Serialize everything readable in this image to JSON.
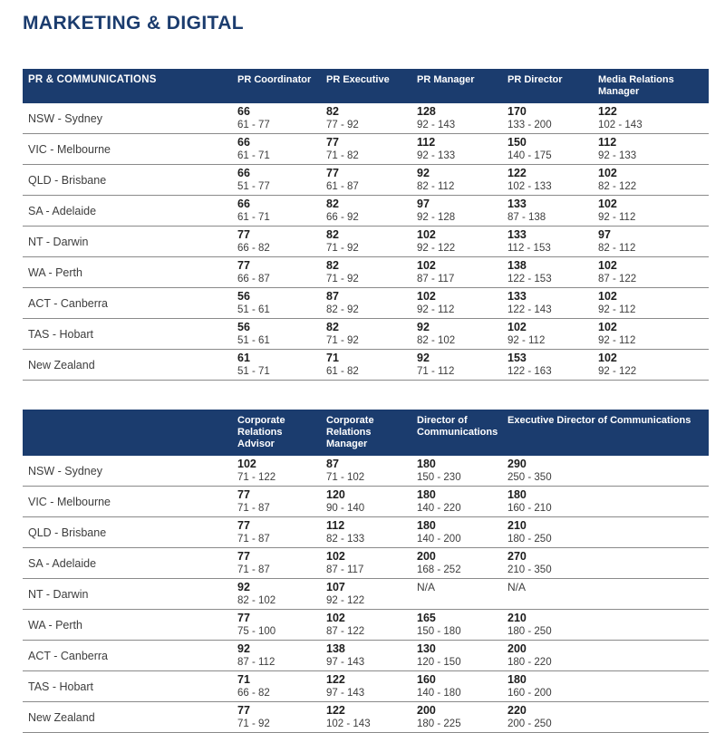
{
  "title": "MARKETING & DIGITAL",
  "colors": {
    "header_bg": "#1B3C6E",
    "title_text": "#1B3C6E",
    "row_line": "#8a8a8a",
    "median_text": "#1d1d1d",
    "secondary_text": "#3d3d3d"
  },
  "tables": [
    {
      "name": "pr-communications-table",
      "label": "PR & COMMUNICATIONS",
      "columns": [
        "PR Coordinator",
        "PR Executive",
        "PR Manager",
        "PR Director",
        "Media Relations Manager"
      ],
      "rows": [
        {
          "region": "NSW - Sydney",
          "cells": [
            [
              "66",
              "61 - 77"
            ],
            [
              "82",
              "77 - 92"
            ],
            [
              "128",
              "92 - 143"
            ],
            [
              "170",
              "133 - 200"
            ],
            [
              "122",
              "102 - 143"
            ]
          ]
        },
        {
          "region": "VIC - Melbourne",
          "cells": [
            [
              "66",
              "61 - 71"
            ],
            [
              "77",
              "71 - 82"
            ],
            [
              "112",
              "92 - 133"
            ],
            [
              "150",
              "140 - 175"
            ],
            [
              "112",
              "92 - 133"
            ]
          ]
        },
        {
          "region": "QLD - Brisbane",
          "cells": [
            [
              "66",
              "51 - 77"
            ],
            [
              "77",
              "61 - 87"
            ],
            [
              "92",
              "82 - 112"
            ],
            [
              "122",
              "102 - 133"
            ],
            [
              "102",
              "82 - 122"
            ]
          ]
        },
        {
          "region": "SA - Adelaide",
          "cells": [
            [
              "66",
              "61 - 71"
            ],
            [
              "82",
              "66 - 92"
            ],
            [
              "97",
              "92 - 128"
            ],
            [
              "133",
              "87 - 138"
            ],
            [
              "102",
              "92 - 112"
            ]
          ]
        },
        {
          "region": "NT - Darwin",
          "cells": [
            [
              "77",
              "66 - 82"
            ],
            [
              "82",
              "71 - 92"
            ],
            [
              "102",
              "92 - 122"
            ],
            [
              "133",
              "112 - 153"
            ],
            [
              "97",
              "82 - 112"
            ]
          ]
        },
        {
          "region": "WA - Perth",
          "cells": [
            [
              "77",
              "66 - 87"
            ],
            [
              "82",
              "71 - 92"
            ],
            [
              "102",
              "87 - 117"
            ],
            [
              "138",
              "122 - 153"
            ],
            [
              "102",
              "87 - 122"
            ]
          ]
        },
        {
          "region": "ACT - Canberra",
          "cells": [
            [
              "56",
              "51 - 61"
            ],
            [
              "87",
              "82 - 92"
            ],
            [
              "102",
              "92 - 112"
            ],
            [
              "133",
              "122 - 143"
            ],
            [
              "102",
              "92 - 112"
            ]
          ]
        },
        {
          "region": "TAS - Hobart",
          "cells": [
            [
              "56",
              "51 - 61"
            ],
            [
              "82",
              "71 - 92"
            ],
            [
              "92",
              "82 - 102"
            ],
            [
              "102",
              "92 - 112"
            ],
            [
              "102",
              "92 - 112"
            ]
          ]
        },
        {
          "region": "New Zealand",
          "cells": [
            [
              "61",
              "51 - 71"
            ],
            [
              "71",
              "61 - 82"
            ],
            [
              "92",
              "71 - 112"
            ],
            [
              "153",
              "122 - 163"
            ],
            [
              "102",
              "92 - 122"
            ]
          ]
        }
      ]
    },
    {
      "name": "corporate-communications-table",
      "label": "",
      "columns": [
        "Corporate Relations Advisor",
        "Corporate Relations Manager",
        "Director of Communications",
        "Executive Director of Communications"
      ],
      "rows": [
        {
          "region": "NSW - Sydney",
          "cells": [
            [
              "102",
              "71 - 122"
            ],
            [
              "87",
              "71 - 102"
            ],
            [
              "180",
              "150 - 230"
            ],
            [
              "290",
              "250 - 350"
            ]
          ]
        },
        {
          "region": "VIC - Melbourne",
          "cells": [
            [
              "77",
              "71 - 87"
            ],
            [
              "120",
              "90 - 140"
            ],
            [
              "180",
              "140 - 220"
            ],
            [
              "180",
              "160 - 210"
            ]
          ]
        },
        {
          "region": "QLD - Brisbane",
          "cells": [
            [
              "77",
              "71 - 87"
            ],
            [
              "112",
              "82 - 133"
            ],
            [
              "180",
              "140 - 200"
            ],
            [
              "210",
              "180 - 250"
            ]
          ]
        },
        {
          "region": "SA - Adelaide",
          "cells": [
            [
              "77",
              "71 - 87"
            ],
            [
              "102",
              "87 - 117"
            ],
            [
              "200",
              "168 - 252"
            ],
            [
              "270",
              "210 - 350"
            ]
          ]
        },
        {
          "region": "NT - Darwin",
          "cells": [
            [
              "92",
              "82 - 102"
            ],
            [
              "107",
              "92 - 122"
            ],
            [
              "N/A",
              ""
            ],
            [
              "N/A",
              ""
            ]
          ]
        },
        {
          "region": "WA - Perth",
          "cells": [
            [
              "77",
              "75 - 100"
            ],
            [
              "102",
              "87 - 122"
            ],
            [
              "165",
              "150 - 180"
            ],
            [
              "210",
              "180 - 250"
            ]
          ]
        },
        {
          "region": "ACT - Canberra",
          "cells": [
            [
              "92",
              "87 - 112"
            ],
            [
              "138",
              "97 - 143"
            ],
            [
              "130",
              "120 - 150"
            ],
            [
              "200",
              "180 - 220"
            ]
          ]
        },
        {
          "region": "TAS - Hobart",
          "cells": [
            [
              "71",
              "66 - 82"
            ],
            [
              "122",
              "97 - 143"
            ],
            [
              "160",
              "140 - 180"
            ],
            [
              "180",
              "160 - 200"
            ]
          ]
        },
        {
          "region": "New Zealand",
          "cells": [
            [
              "77",
              "71 - 92"
            ],
            [
              "122",
              "102 - 143"
            ],
            [
              "200",
              "180 - 225"
            ],
            [
              "220",
              "200 - 250"
            ]
          ]
        }
      ]
    }
  ]
}
